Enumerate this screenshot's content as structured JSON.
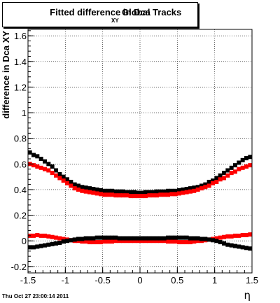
{
  "title": {
    "prefix": "Fitted difference in Dca",
    "subscript": "XY",
    "suffix": "Global Tracks"
  },
  "footer": {
    "timestamp": "Thu Oct 27 23:00:14 2011"
  },
  "chart_data": {
    "type": "scatter",
    "title": "Fitted difference in Dca XY Global Tracks",
    "xlabel": "η",
    "ylabel": "difference in Dca XY",
    "xlim": [
      -1.5,
      1.5
    ],
    "ylim": [
      -0.25,
      1.65
    ],
    "x_ticks": [
      -1.5,
      -1,
      -0.5,
      0,
      0.5,
      1,
      1.5
    ],
    "x_tick_labels": [
      "-1.5",
      "-1",
      "-0.5",
      "0",
      "0.5",
      "1",
      "1.5"
    ],
    "y_ticks": [
      -0.2,
      0,
      0.2,
      0.4,
      0.6,
      0.8,
      1,
      1.2,
      1.4,
      1.6
    ],
    "y_tick_labels": [
      "-0.2",
      "0",
      "0.2",
      "0.4",
      "0.6",
      "0.8",
      "1",
      "1.2",
      "1.4",
      "1.6"
    ],
    "grid": true,
    "colors": {
      "black": "#000000",
      "red": "#ff0000"
    },
    "series": [
      {
        "color": "#000000",
        "x": [
          -1.475,
          -1.425,
          -1.375,
          -1.325,
          -1.275,
          -1.225,
          -1.175,
          -1.125,
          -1.075,
          -1.025,
          -0.975,
          -0.925,
          -0.875,
          -0.825,
          -0.775,
          -0.725,
          -0.675,
          -0.625,
          -0.575,
          -0.525,
          -0.475,
          -0.425,
          -0.375,
          -0.325,
          -0.275,
          -0.225,
          -0.175,
          -0.125,
          -0.075,
          -0.025,
          0.025,
          0.075,
          0.125,
          0.175,
          0.225,
          0.275,
          0.325,
          0.375,
          0.425,
          0.475,
          0.525,
          0.575,
          0.625,
          0.675,
          0.725,
          0.775,
          0.825,
          0.875,
          0.925,
          0.975,
          1.025,
          1.075,
          1.125,
          1.175,
          1.225,
          1.275,
          1.325,
          1.375,
          1.425,
          1.475
        ],
        "values": [
          0.69,
          0.67,
          0.66,
          0.64,
          0.62,
          0.6,
          0.58,
          0.55,
          0.52,
          0.5,
          0.48,
          0.46,
          0.44,
          0.43,
          0.42,
          0.415,
          0.41,
          0.405,
          0.4,
          0.395,
          0.39,
          0.39,
          0.39,
          0.385,
          0.385,
          0.385,
          0.38,
          0.38,
          0.38,
          0.375,
          0.375,
          0.38,
          0.38,
          0.38,
          0.385,
          0.385,
          0.385,
          0.39,
          0.39,
          0.39,
          0.395,
          0.4,
          0.405,
          0.41,
          0.415,
          0.42,
          0.43,
          0.44,
          0.46,
          0.47,
          0.49,
          0.51,
          0.53,
          0.55,
          0.57,
          0.59,
          0.61,
          0.63,
          0.645,
          0.655
        ]
      },
      {
        "color": "#ff0000",
        "x": [
          -1.475,
          -1.425,
          -1.375,
          -1.325,
          -1.275,
          -1.225,
          -1.175,
          -1.125,
          -1.075,
          -1.025,
          -0.975,
          -0.925,
          -0.875,
          -0.825,
          -0.775,
          -0.725,
          -0.675,
          -0.625,
          -0.575,
          -0.525,
          -0.475,
          -0.425,
          -0.375,
          -0.325,
          -0.275,
          -0.225,
          -0.175,
          -0.125,
          -0.075,
          -0.025,
          0.025,
          0.075,
          0.125,
          0.175,
          0.225,
          0.275,
          0.325,
          0.375,
          0.425,
          0.475,
          0.525,
          0.575,
          0.625,
          0.675,
          0.725,
          0.775,
          0.825,
          0.875,
          0.925,
          0.975,
          1.025,
          1.075,
          1.125,
          1.175,
          1.225,
          1.275,
          1.325,
          1.375,
          1.425,
          1.475
        ],
        "values": [
          0.6,
          0.59,
          0.58,
          0.57,
          0.56,
          0.55,
          0.53,
          0.51,
          0.49,
          0.47,
          0.45,
          0.43,
          0.41,
          0.4,
          0.39,
          0.385,
          0.38,
          0.375,
          0.37,
          0.365,
          0.36,
          0.36,
          0.36,
          0.355,
          0.355,
          0.355,
          0.355,
          0.35,
          0.35,
          0.35,
          0.35,
          0.35,
          0.355,
          0.355,
          0.355,
          0.36,
          0.36,
          0.36,
          0.365,
          0.365,
          0.37,
          0.375,
          0.38,
          0.385,
          0.39,
          0.4,
          0.41,
          0.42,
          0.43,
          0.45,
          0.46,
          0.48,
          0.49,
          0.51,
          0.53,
          0.54,
          0.56,
          0.57,
          0.58,
          0.59
        ]
      },
      {
        "color": "#ff0000",
        "x": [
          -1.475,
          -1.425,
          -1.375,
          -1.325,
          -1.275,
          -1.225,
          -1.175,
          -1.125,
          -1.075,
          -1.025,
          -0.975,
          -0.925,
          -0.875,
          -0.825,
          -0.775,
          -0.725,
          -0.675,
          -0.625,
          -0.575,
          -0.525,
          -0.475,
          -0.425,
          -0.375,
          -0.325,
          -0.275,
          -0.225,
          -0.175,
          -0.125,
          -0.075,
          -0.025,
          0.025,
          0.075,
          0.125,
          0.175,
          0.225,
          0.275,
          0.325,
          0.375,
          0.425,
          0.475,
          0.525,
          0.575,
          0.625,
          0.675,
          0.725,
          0.775,
          0.825,
          0.875,
          0.925,
          0.975,
          1.025,
          1.075,
          1.125,
          1.175,
          1.225,
          1.275,
          1.325,
          1.375,
          1.425,
          1.475
        ],
        "values": [
          0.04,
          0.04,
          0.045,
          0.04,
          0.04,
          0.035,
          0.03,
          0.025,
          0.02,
          0.015,
          0.01,
          0.005,
          0.0,
          0.0,
          -0.005,
          -0.005,
          -0.01,
          -0.01,
          -0.01,
          -0.01,
          -0.005,
          -0.005,
          -0.005,
          0.0,
          0.0,
          0.0,
          0.0,
          0.0,
          0.0,
          0.0,
          0.0,
          0.0,
          0.0,
          0.0,
          0.0,
          0.0,
          0.0,
          -0.005,
          -0.005,
          -0.005,
          -0.01,
          -0.01,
          -0.01,
          -0.01,
          -0.005,
          0.0,
          0.0,
          0.005,
          0.01,
          0.015,
          0.02,
          0.025,
          0.03,
          0.035,
          0.035,
          0.04,
          0.04,
          0.045,
          0.045,
          0.05
        ]
      },
      {
        "color": "#000000",
        "x": [
          -1.475,
          -1.425,
          -1.375,
          -1.325,
          -1.275,
          -1.225,
          -1.175,
          -1.125,
          -1.075,
          -1.025,
          -0.975,
          -0.925,
          -0.875,
          -0.825,
          -0.775,
          -0.725,
          -0.675,
          -0.625,
          -0.575,
          -0.525,
          -0.475,
          -0.425,
          -0.375,
          -0.325,
          -0.275,
          -0.225,
          -0.175,
          -0.125,
          -0.075,
          -0.025,
          0.025,
          0.075,
          0.125,
          0.175,
          0.225,
          0.275,
          0.325,
          0.375,
          0.425,
          0.475,
          0.525,
          0.575,
          0.625,
          0.675,
          0.725,
          0.775,
          0.825,
          0.875,
          0.925,
          0.975,
          1.025,
          1.075,
          1.125,
          1.175,
          1.225,
          1.275,
          1.325,
          1.375,
          1.425,
          1.475
        ],
        "values": [
          -0.05,
          -0.05,
          -0.045,
          -0.04,
          -0.035,
          -0.03,
          -0.025,
          -0.02,
          -0.015,
          -0.005,
          0.0,
          0.005,
          0.01,
          0.015,
          0.015,
          0.02,
          0.02,
          0.02,
          0.025,
          0.025,
          0.025,
          0.025,
          0.025,
          0.025,
          0.02,
          0.02,
          0.02,
          0.02,
          0.02,
          0.02,
          0.02,
          0.02,
          0.02,
          0.02,
          0.02,
          0.02,
          0.02,
          0.025,
          0.025,
          0.025,
          0.025,
          0.025,
          0.025,
          0.02,
          0.02,
          0.02,
          0.015,
          0.015,
          0.01,
          0.005,
          0.0,
          -0.01,
          -0.02,
          -0.03,
          -0.035,
          -0.04,
          -0.045,
          -0.05,
          -0.055,
          -0.06
        ]
      }
    ]
  }
}
